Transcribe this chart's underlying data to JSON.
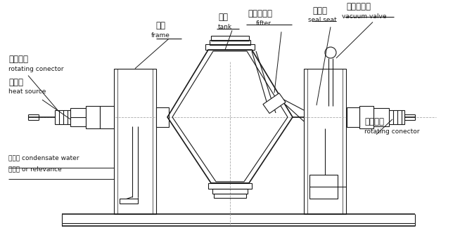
{
  "bg_color": "#ffffff",
  "line_color": "#1a1a1a",
  "fig_width": 6.54,
  "fig_height": 3.32,
  "labels": {
    "zh_rotconn_l": "旋转接头",
    "en_rotconn_l": "rotating conector",
    "zh_heat": "进热源",
    "en_heat": "heat source",
    "zh_frame": "机架",
    "en_frame": "frame",
    "zh_tank": "罐体",
    "en_tank": "tank",
    "zh_filter": "真空过滤器",
    "en_filter": "fifter",
    "zh_seal": "密封座",
    "en_seal": "seal seat",
    "zh_vacuum": "真空压力表",
    "en_vacuum": "vacuum valve",
    "zh_rotconn_r": "旋转接头",
    "en_rotconn_r": "rotating conector",
    "zh_cond": "冷凝水",
    "en_cond": "condensate water",
    "zh_rel": "或回流",
    "en_rel": "or relevance"
  }
}
